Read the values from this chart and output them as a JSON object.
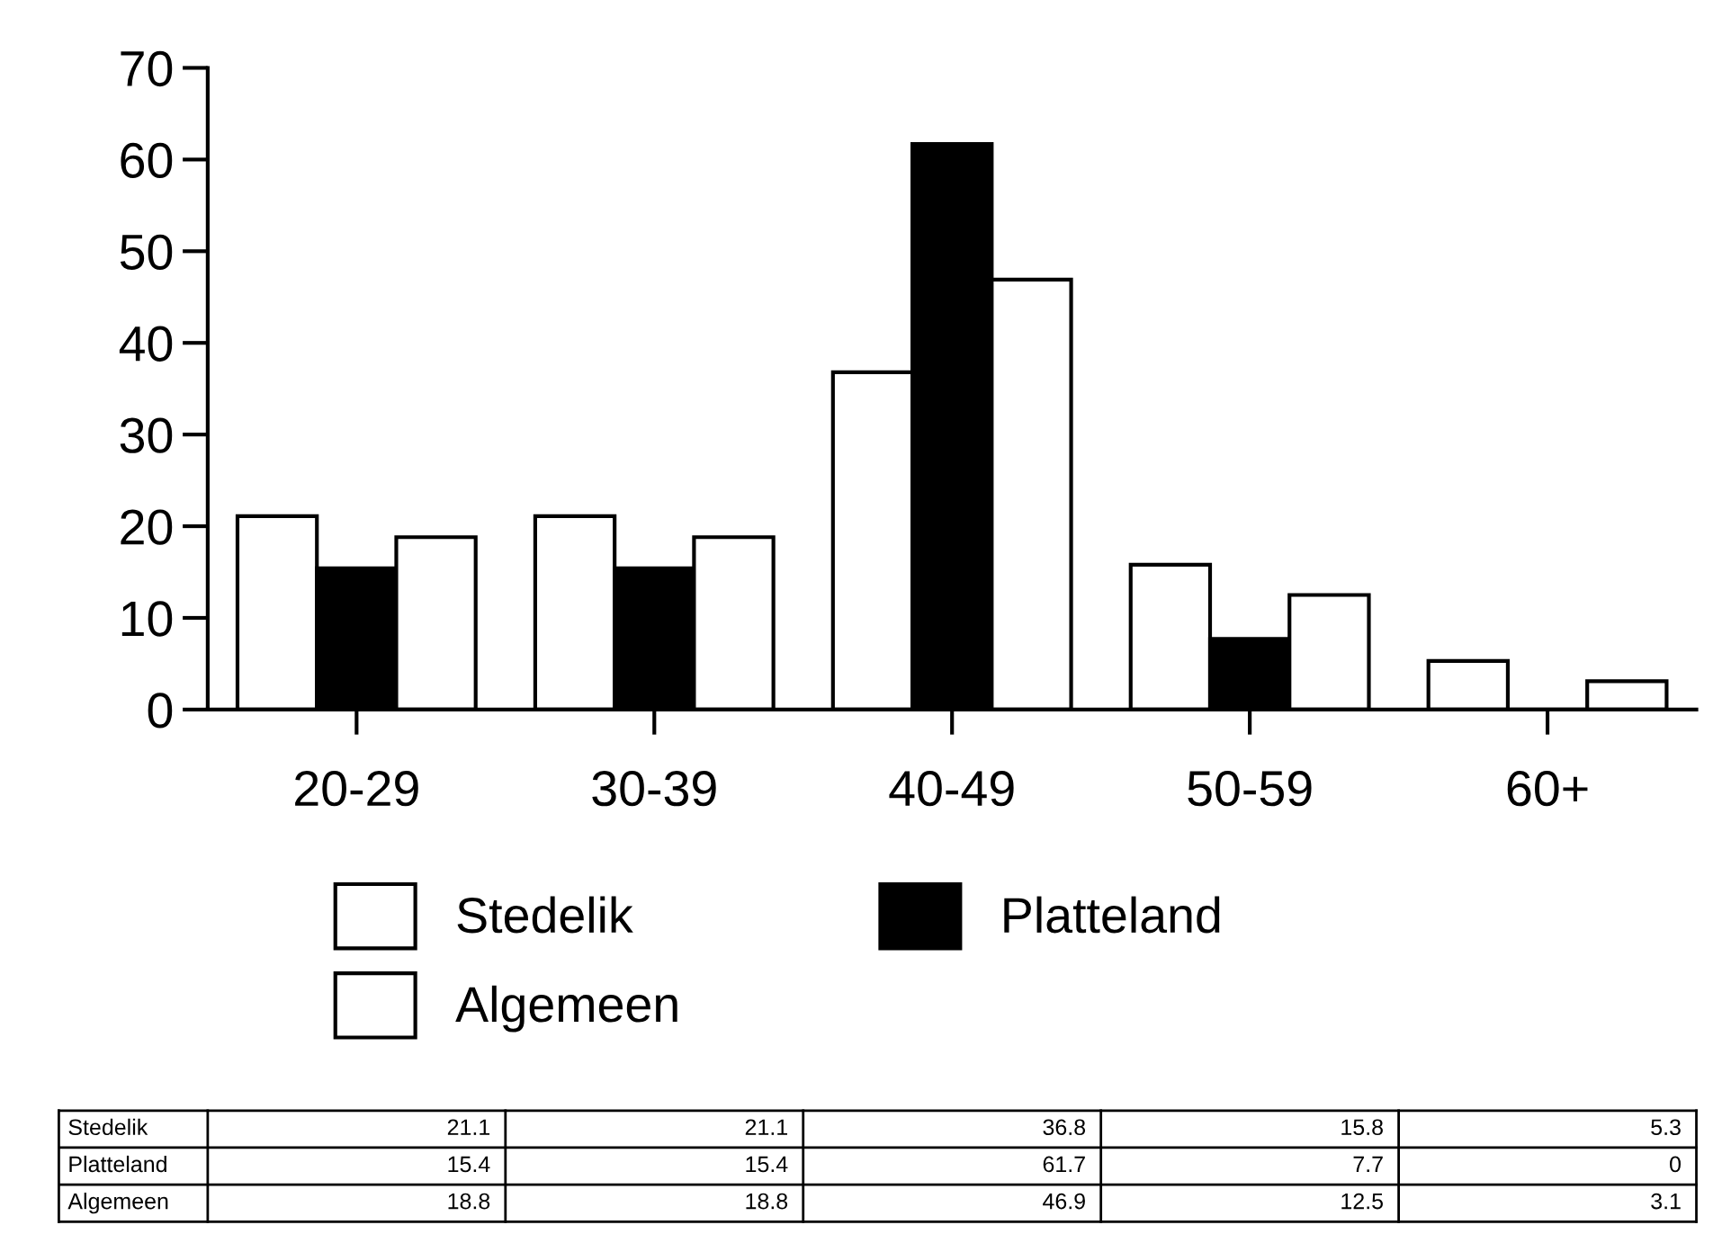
{
  "chart_data": {
    "type": "bar",
    "categories": [
      "20-29",
      "30-39",
      "40-49",
      "50-59",
      "60+"
    ],
    "series": [
      {
        "name": "Stedelik",
        "color": "#ffffff",
        "values": [
          21.1,
          21.1,
          36.8,
          15.8,
          5.3
        ]
      },
      {
        "name": "Platteland",
        "color": "#000000",
        "values": [
          15.4,
          15.4,
          61.7,
          7.7,
          0
        ]
      },
      {
        "name": "Algemeen",
        "color": "#ffffff",
        "values": [
          18.8,
          18.8,
          46.9,
          12.5,
          3.1
        ]
      }
    ],
    "ylim": [
      0,
      70
    ],
    "yticks": [
      0,
      10,
      20,
      30,
      40,
      50,
      60,
      70
    ],
    "grid": false,
    "legend": "bottom",
    "data_labels": true
  }
}
